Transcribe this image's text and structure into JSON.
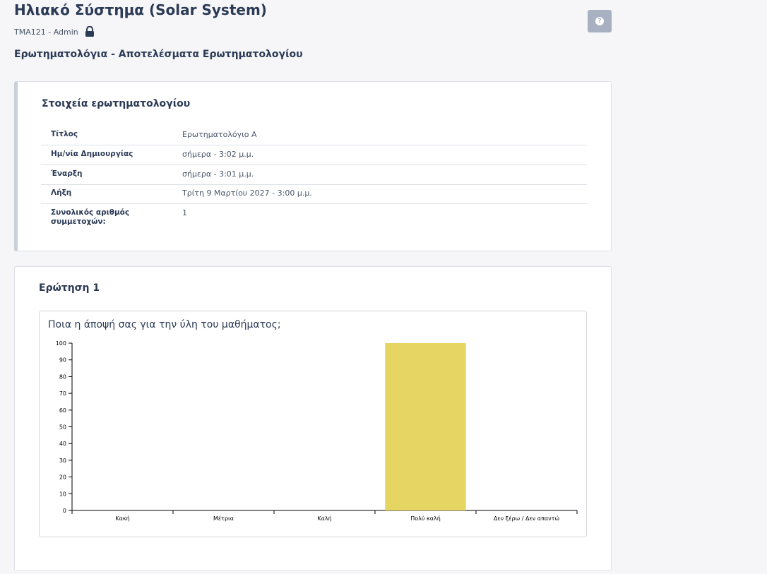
{
  "header": {
    "title": "Ηλιακό Σύστημα (Solar System)",
    "course": "TMA121",
    "role": "Admin",
    "section": "Ερωτηματολόγια - Αποτελέσματα Ερωτηματολογίου",
    "help_icon": "?"
  },
  "info": {
    "title": "Στοιχεία ερωτηματολογίου",
    "rows": [
      [
        "Τίτλος",
        "Ερωτηματολόγιο Α"
      ],
      [
        "Ημ/νία Δημιουργίας",
        "σήμερα - 3:02 μ.μ."
      ],
      [
        "Έναρξη",
        "σήμερα - 3:01 μ.μ."
      ],
      [
        "Λήξη",
        "Τρίτη 9 Μαρτίου 2027 - 3:00 μ.μ."
      ],
      [
        "Συνολικός αριθμός συμμετοχών:",
        "1"
      ]
    ]
  },
  "question": {
    "title": "Ερώτηση 1"
  },
  "chart_data": {
    "type": "bar",
    "title": "Ποια η άποψή σας για την ύλη του μαθήματος;",
    "categories": [
      "Κακή",
      "Μέτρια",
      "Καλή",
      "Πολύ καλή",
      "Δεν ξέρω / Δεν απαντώ"
    ],
    "values": [
      0,
      0,
      0,
      100,
      0
    ],
    "color": "#e6d463",
    "ylim": [
      0,
      100
    ],
    "yticks": [
      0,
      10,
      20,
      30,
      40,
      50,
      60,
      70,
      80,
      90,
      100
    ]
  }
}
